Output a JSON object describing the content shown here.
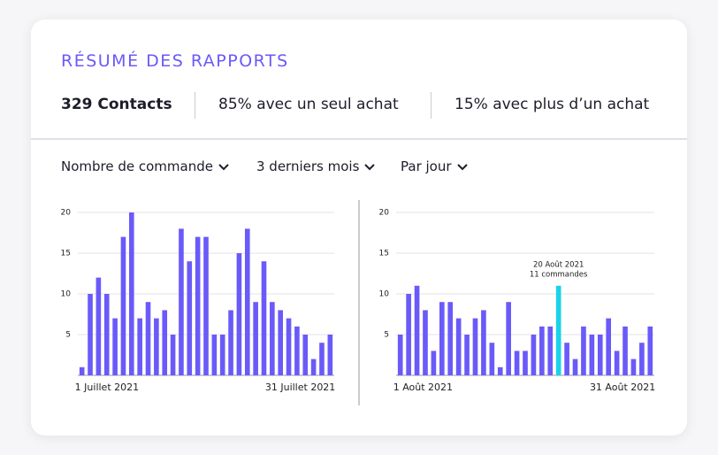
{
  "header": {
    "title": "RÉSUMÉ DES RAPPORTS"
  },
  "stats": [
    "329 Contacts",
    "85% avec un seul achat",
    "15% avec plus d’un achat"
  ],
  "filters": [
    "Nombre de commande",
    "3 derniers mois",
    "Par jour"
  ],
  "chart_data": [
    {
      "type": "bar",
      "categories": [
        "1 Juillet 2021",
        null,
        null,
        null,
        null,
        null,
        null,
        null,
        null,
        null,
        null,
        null,
        null,
        null,
        null,
        null,
        null,
        null,
        null,
        null,
        null,
        null,
        null,
        null,
        null,
        null,
        null,
        null,
        null,
        null,
        "31 Juillet 2021"
      ],
      "values": [
        1,
        10,
        12,
        10,
        7,
        17,
        20,
        7,
        9,
        7,
        8,
        5,
        18,
        14,
        17,
        17,
        5,
        5,
        8,
        15,
        18,
        9,
        14,
        9,
        8,
        7,
        6,
        5,
        2,
        4,
        5
      ],
      "color": "#6a5af9",
      "ylim": [
        0,
        20
      ],
      "yticks": [
        5,
        10,
        15,
        20
      ],
      "grid": true
    },
    {
      "type": "bar",
      "categories": [
        "1 Août 2021",
        null,
        null,
        null,
        null,
        null,
        null,
        null,
        null,
        null,
        null,
        null,
        null,
        null,
        null,
        null,
        null,
        null,
        null,
        null,
        null,
        null,
        null,
        null,
        null,
        null,
        null,
        null,
        null,
        null,
        "31 Août 2021"
      ],
      "values": [
        5,
        10,
        11,
        8,
        3,
        9,
        9,
        7,
        5,
        7,
        8,
        4,
        1,
        9,
        3,
        3,
        5,
        6,
        6,
        11,
        4,
        2,
        6,
        5,
        5,
        7,
        3,
        6,
        2,
        4,
        6
      ],
      "color": "#6a5af9",
      "highlight": {
        "category": "20 Août 2021",
        "label": "11 commandes",
        "color": "#19d3e8"
      },
      "ylim": [
        0,
        20
      ],
      "yticks": [
        5,
        10,
        15,
        20
      ],
      "grid": true
    }
  ]
}
